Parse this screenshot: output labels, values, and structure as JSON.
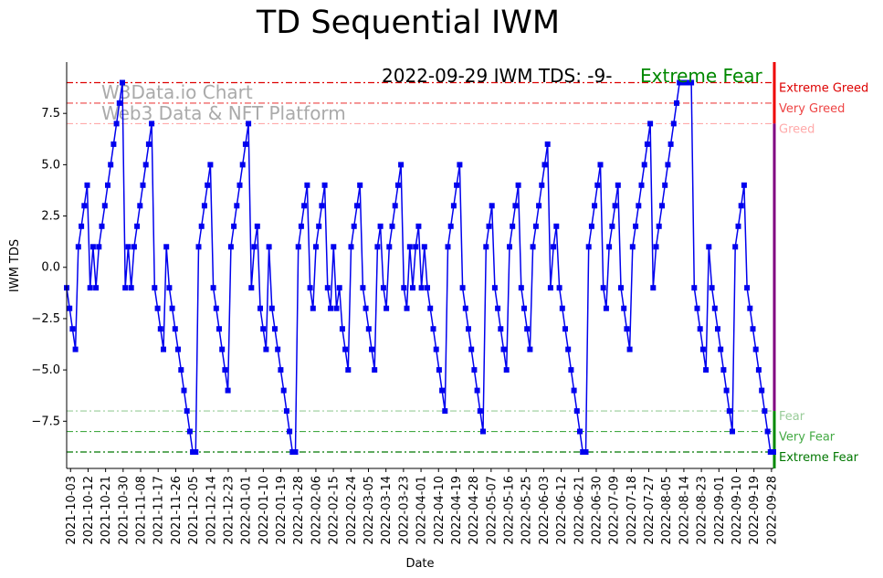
{
  "chart_data": {
    "type": "line",
    "title": "TD Sequential IWM",
    "xlabel": "Date",
    "ylabel": "IWM TDS",
    "ylim": [
      -9.8,
      10
    ],
    "yticks": [
      -7.5,
      -5.0,
      -2.5,
      0.0,
      2.5,
      5.0,
      7.5
    ],
    "ytick_labels": [
      "−7.5",
      "−5.0",
      "−2.5",
      "0.0",
      "2.5",
      "5.0",
      "7.5"
    ],
    "start_date": "2021-10-01",
    "end_date": "2022-09-29",
    "xtick_labels": [
      "2021-10-03",
      "2021-10-12",
      "2021-10-21",
      "2021-10-30",
      "2021-11-08",
      "2021-11-17",
      "2021-11-26",
      "2021-12-05",
      "2021-12-14",
      "2021-12-23",
      "2022-01-01",
      "2022-01-10",
      "2022-01-19",
      "2022-01-28",
      "2022-02-06",
      "2022-02-15",
      "2022-02-24",
      "2022-03-05",
      "2022-03-14",
      "2022-03-23",
      "2022-04-01",
      "2022-04-10",
      "2022-04-19",
      "2022-04-28",
      "2022-05-07",
      "2022-05-16",
      "2022-05-25",
      "2022-06-03",
      "2022-06-12",
      "2022-06-21",
      "2022-06-30",
      "2022-07-09",
      "2022-07-18",
      "2022-07-27",
      "2022-08-05",
      "2022-08-14",
      "2022-08-23",
      "2022-09-01",
      "2022-09-10",
      "2022-09-19",
      "2022-09-28"
    ],
    "series": [
      {
        "name": "IWM TDS",
        "color": "#0000ee",
        "values": [
          -1,
          -2,
          -3,
          -4,
          1,
          2,
          3,
          4,
          -1,
          1,
          -1,
          1,
          2,
          3,
          4,
          5,
          6,
          7,
          8,
          9,
          -1,
          1,
          -1,
          1,
          2,
          3,
          4,
          5,
          6,
          7,
          -1,
          -2,
          -3,
          -4,
          1,
          -1,
          -2,
          -3,
          -4,
          -5,
          -6,
          -7,
          -8,
          -9,
          -9,
          1,
          2,
          3,
          4,
          5,
          -1,
          -2,
          -3,
          -4,
          -5,
          -6,
          1,
          2,
          3,
          4,
          5,
          6,
          7,
          -1,
          1,
          2,
          -2,
          -3,
          -4,
          1,
          -2,
          -3,
          -4,
          -5,
          -6,
          -7,
          -8,
          -9,
          -9,
          1,
          2,
          3,
          4,
          -1,
          -2,
          1,
          2,
          3,
          4,
          -1,
          -2,
          1,
          -2,
          -1,
          -3,
          -4,
          -5,
          1,
          2,
          3,
          4,
          -1,
          -2,
          -3,
          -4,
          -5,
          1,
          2,
          -1,
          -2,
          1,
          2,
          3,
          4,
          5,
          -1,
          -2,
          1,
          -1,
          1,
          2,
          -1,
          1,
          -1,
          -2,
          -3,
          -4,
          -5,
          -6,
          -7,
          1,
          2,
          3,
          4,
          5,
          -1,
          -2,
          -3,
          -4,
          -5,
          -6,
          -7,
          -8,
          1,
          2,
          3,
          -1,
          -2,
          -3,
          -4,
          -5,
          1,
          2,
          3,
          4,
          -1,
          -2,
          -3,
          -4,
          1,
          2,
          3,
          4,
          5,
          6,
          -1,
          1,
          2,
          -1,
          -2,
          -3,
          -4,
          -5,
          -6,
          -7,
          -8,
          -9,
          -9,
          1,
          2,
          3,
          4,
          5,
          -1,
          -2,
          1,
          2,
          3,
          4,
          -1,
          -2,
          -3,
          -4,
          1,
          2,
          3,
          4,
          5,
          6,
          7,
          -1,
          1,
          2,
          3,
          4,
          5,
          6,
          7,
          8,
          9,
          9,
          9,
          9,
          9,
          -1,
          -2,
          -3,
          -4,
          -5,
          1,
          -1,
          -2,
          -3,
          -4,
          -5,
          -6,
          -7,
          -8,
          1,
          2,
          3,
          4,
          -1,
          -2,
          -3,
          -4,
          -5,
          -6,
          -7,
          -8,
          -9,
          -9
        ]
      }
    ],
    "levels": [
      {
        "value": 9,
        "label": "Extreme Greed",
        "color": "#dd0000",
        "dash": "7,3,2,3"
      },
      {
        "value": 8,
        "label": "Very Greed",
        "color": "#ee4444",
        "dash": "7,3,2,3"
      },
      {
        "value": 7,
        "label": "Greed",
        "color": "#ffaaaa",
        "dash": "7,3,2,3"
      },
      {
        "value": -7,
        "label": "Fear",
        "color": "#99cc99",
        "dash": "7,3,2,3"
      },
      {
        "value": -8,
        "label": "Very Fear",
        "color": "#44aa44",
        "dash": "7,3,2,3"
      },
      {
        "value": -9,
        "label": "Extreme Fear",
        "color": "#007700",
        "dash": "7,3,2,3"
      }
    ],
    "annotation": {
      "text": "2022-09-29 IWM TDS: -9-",
      "status": "Extreme Fear",
      "status_color": "#008800"
    },
    "watermark": {
      "line1": "W3Data.io Chart",
      "line2": "Web3 Data & NFT Platform"
    }
  }
}
